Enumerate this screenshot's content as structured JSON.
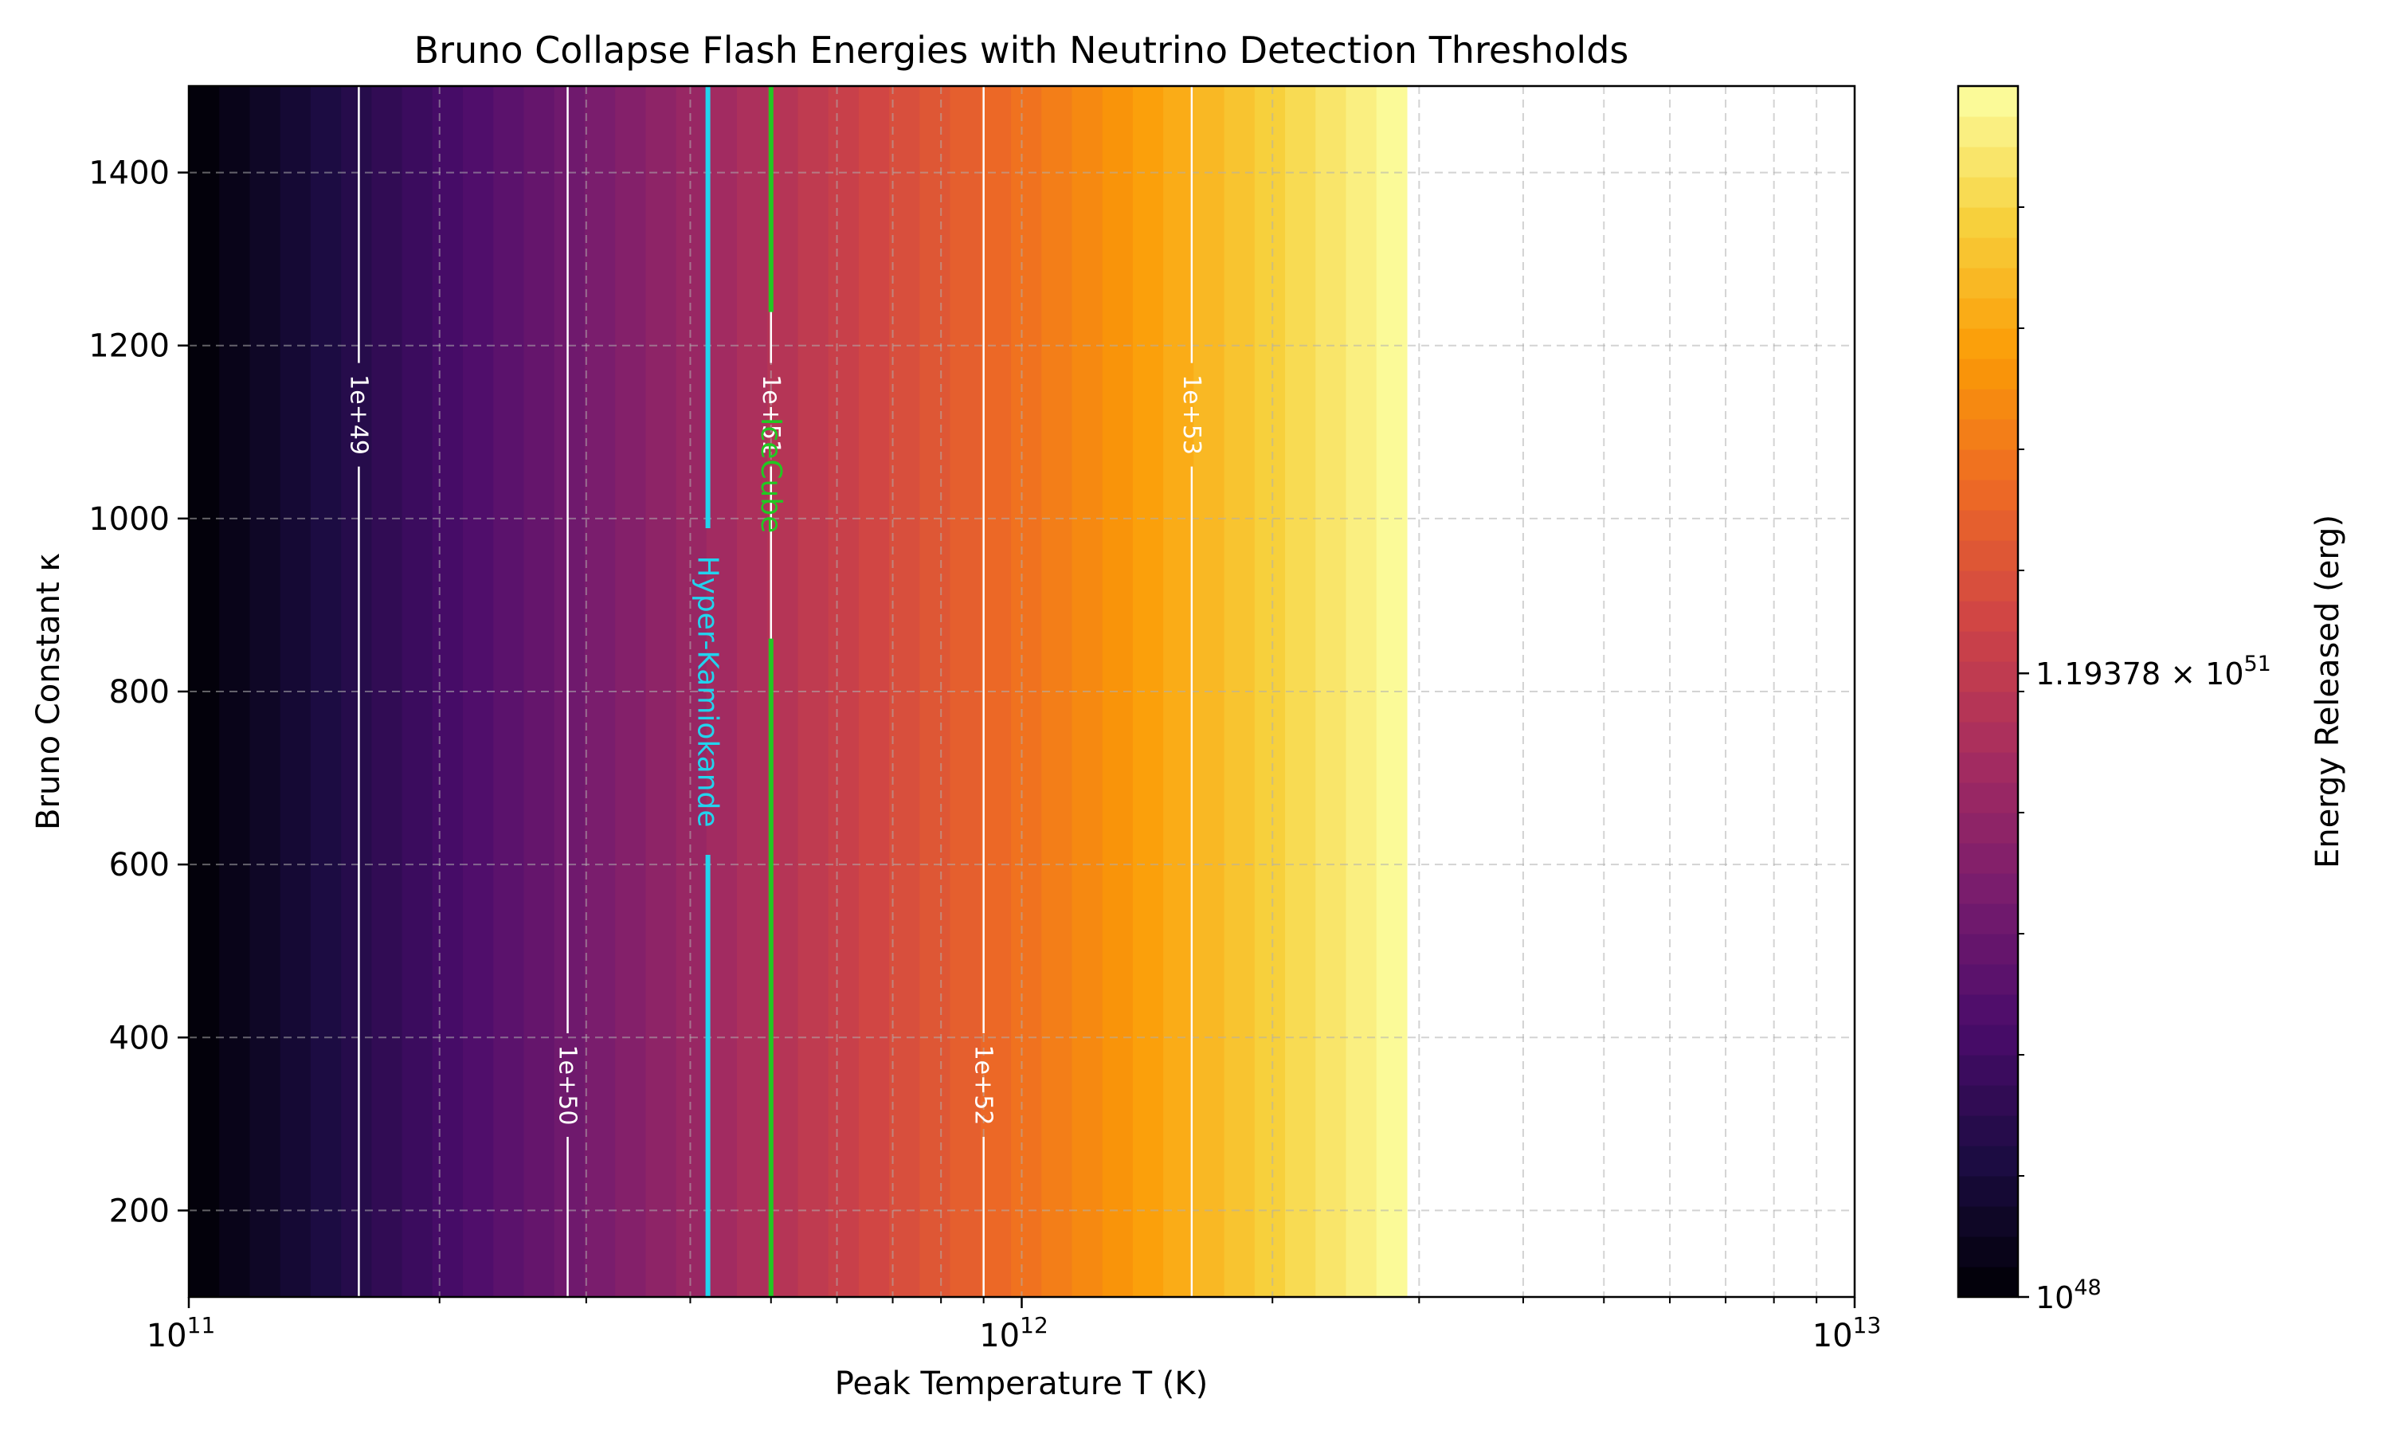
{
  "chart_data": {
    "type": "heatmap",
    "title": "Bruno Collapse Flash Energies with Neutrino Detection Thresholds",
    "xlabel": "Peak Temperature T (K)",
    "ylabel": "Bruno Constant κ",
    "x_scale": "log",
    "xlim": [
      100000000000.0,
      10000000000000.0
    ],
    "ylim": [
      100,
      1500
    ],
    "x_ticks": [
      {
        "value": 100000000000.0,
        "base": "10",
        "exp": "11"
      },
      {
        "value": 1000000000000.0,
        "base": "10",
        "exp": "12"
      },
      {
        "value": 10000000000000.0,
        "base": "10",
        "exp": "13"
      }
    ],
    "y_ticks": [
      200,
      400,
      600,
      800,
      1000,
      1200,
      1400
    ],
    "grid": true,
    "field": {
      "description_of_values": "Energy released depends only on T, increasing steeply; defined up to about 2.9e12 K, blank beyond",
      "t_min": 100000000000.0,
      "t_max_filled": 2900000000000.0,
      "levels": 40
    },
    "colormap": [
      "#000004",
      "#1b0c41",
      "#4a0c6b",
      "#781c6d",
      "#a52c60",
      "#cf4446",
      "#ed6925",
      "#fb9b06",
      "#f7d13d",
      "#fcffa4"
    ],
    "contours": [
      {
        "label": "1e+49",
        "T": 160000000000.0,
        "label_y": 1120
      },
      {
        "label": "1e+50",
        "T": 285000000000.0,
        "label_y": 345
      },
      {
        "label": "1e+51",
        "T": 500000000000.0,
        "label_y": 1120
      },
      {
        "label": "1e+52",
        "T": 900000000000.0,
        "label_y": 345
      },
      {
        "label": "1e+53",
        "T": 1600000000000.0,
        "label_y": 1120
      }
    ],
    "thresholds": [
      {
        "name": "Hyper-Kamiokande",
        "T": 420000000000.0,
        "color": "#22d3ee",
        "label_y": 800
      },
      {
        "name": "IceCube",
        "T": 500000000000.0,
        "color": "#22c822",
        "label_y": 1050
      }
    ],
    "colorbar": {
      "label": "Energy Released (erg)",
      "scale": "log",
      "ticks": [
        {
          "label_base": "10",
          "label_exp": "48",
          "position": 0.0
        },
        {
          "label_mant": "1.19378 × 10",
          "label_exp": "51",
          "position": 0.515
        }
      ]
    }
  }
}
